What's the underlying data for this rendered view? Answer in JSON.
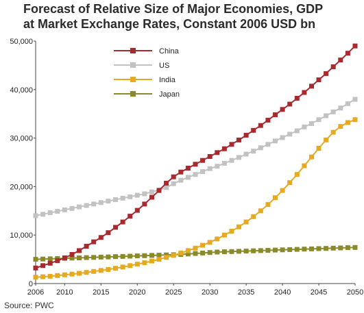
{
  "title_lines": [
    "Forecast of Relative Size of Major Economies, GDP",
    "at Market Exchange Rates, Constant 2006 USD bn"
  ],
  "source": "Source: PWC",
  "chart_data": {
    "type": "line",
    "title": "Forecast of Relative Size of Major Economies, GDP at Market Exchange Rates, Constant 2006 USD bn",
    "xlabel": "",
    "ylabel": "",
    "xlim": [
      2006,
      2050
    ],
    "ylim": [
      0,
      50000
    ],
    "x_ticks": [
      2006,
      2010,
      2015,
      2020,
      2025,
      2030,
      2035,
      2040,
      2045,
      2050
    ],
    "y_ticks": [
      0,
      10000,
      20000,
      30000,
      40000,
      50000
    ],
    "y_tick_labels": [
      "0",
      "10,000",
      "20,000",
      "30,000",
      "40,000",
      "50,000"
    ],
    "grid": false,
    "legend_position": "top-left",
    "x": [
      2006,
      2007,
      2008,
      2009,
      2010,
      2011,
      2012,
      2013,
      2014,
      2015,
      2016,
      2017,
      2018,
      2019,
      2020,
      2021,
      2022,
      2023,
      2024,
      2025,
      2026,
      2027,
      2028,
      2029,
      2030,
      2031,
      2032,
      2033,
      2034,
      2035,
      2036,
      2037,
      2038,
      2039,
      2040,
      2041,
      2042,
      2043,
      2044,
      2045,
      2046,
      2047,
      2048,
      2049,
      2050
    ],
    "series": [
      {
        "name": "China",
        "color": "#a82a2f",
        "values": [
          3200,
          3700,
          4200,
          4700,
          5300,
          6000,
          6800,
          7700,
          8600,
          9500,
          10500,
          11600,
          12700,
          13900,
          15100,
          16400,
          17800,
          19200,
          20700,
          22000,
          23000,
          23800,
          24600,
          25400,
          26200,
          27000,
          27800,
          28700,
          29600,
          30600,
          31600,
          32600,
          33700,
          34800,
          35900,
          37000,
          38200,
          39400,
          40700,
          42000,
          43300,
          44700,
          46100,
          47500,
          49000
        ]
      },
      {
        "name": "US",
        "color": "#c2c2c2",
        "values": [
          14000,
          14300,
          14600,
          14900,
          15200,
          15500,
          15800,
          16100,
          16400,
          16700,
          17000,
          17300,
          17600,
          17900,
          18200,
          18500,
          18900,
          19300,
          19800,
          20600,
          21300,
          21900,
          22500,
          23100,
          23700,
          24200,
          24800,
          25400,
          26000,
          26700,
          27300,
          28000,
          28700,
          29400,
          30100,
          30800,
          31500,
          32300,
          33000,
          33800,
          34600,
          35400,
          36200,
          37100,
          38000
        ]
      },
      {
        "name": "India",
        "color": "#e6aa22",
        "values": [
          1300,
          1400,
          1500,
          1650,
          1800,
          1950,
          2100,
          2300,
          2500,
          2700,
          2900,
          3150,
          3400,
          3700,
          4000,
          4300,
          4650,
          5000,
          5400,
          5800,
          6300,
          6800,
          7300,
          7900,
          8500,
          9200,
          10000,
          10800,
          11700,
          12700,
          13800,
          15000,
          16300,
          17700,
          19200,
          20800,
          22500,
          24300,
          26100,
          27900,
          29600,
          31200,
          32400,
          33200,
          33800
        ]
      },
      {
        "name": "Japan",
        "color": "#8a8a2a",
        "values": [
          5000,
          5050,
          5100,
          5150,
          5200,
          5250,
          5300,
          5350,
          5400,
          5450,
          5500,
          5550,
          5600,
          5650,
          5700,
          5750,
          5800,
          5850,
          5900,
          5950,
          6000,
          6100,
          6200,
          6300,
          6400,
          6500,
          6550,
          6600,
          6650,
          6700,
          6750,
          6800,
          6850,
          6900,
          6950,
          7000,
          7050,
          7100,
          7150,
          7200,
          7250,
          7300,
          7350,
          7400,
          7450
        ]
      }
    ]
  }
}
